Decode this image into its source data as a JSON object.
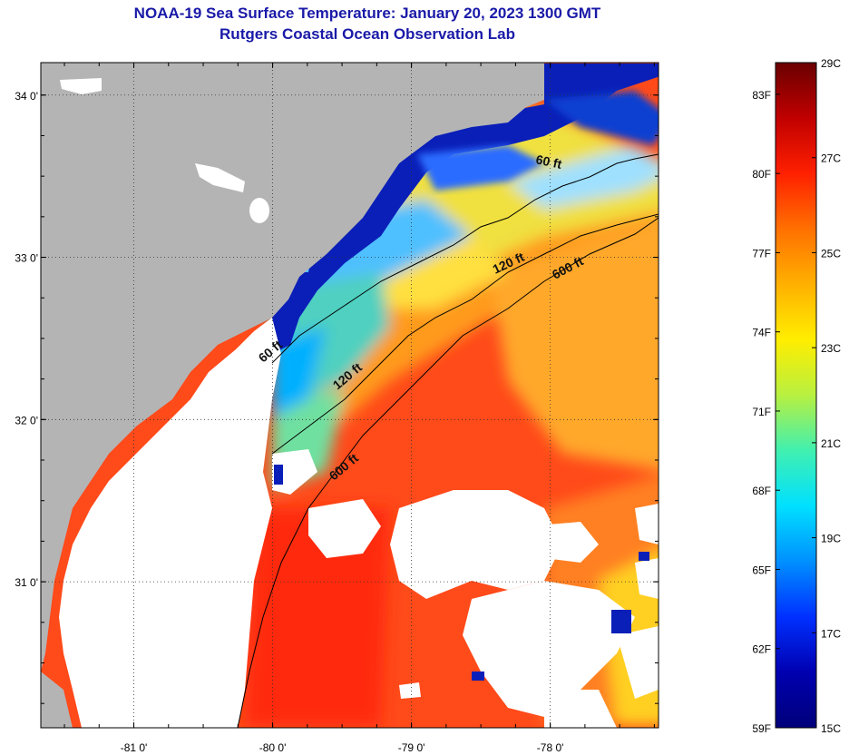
{
  "title": "NOAA-19 Sea Surface Temperature:  January 20, 2023 1300 GMT",
  "subtitle": "Rutgers Coastal Ocean Observation Lab",
  "colors": {
    "land": "#b4b4b4",
    "cloud_mask": "#ffffff",
    "coast_line": "#000000"
  },
  "map": {
    "lon_range": [
      -81.67,
      -77.22
    ],
    "lat_range": [
      30.1,
      34.2
    ],
    "lon_ticks": [
      {
        "value": -81,
        "label": "-81 0'"
      },
      {
        "value": -80,
        "label": "-80 0'"
      },
      {
        "value": -79,
        "label": "-79 0'"
      },
      {
        "value": -78,
        "label": "-78 0'"
      }
    ],
    "lat_ticks": [
      {
        "value": 34,
        "label": "34 0'"
      },
      {
        "value": 33,
        "label": "33 0'"
      },
      {
        "value": 32,
        "label": "32 0'"
      },
      {
        "value": 31,
        "label": "31 0'"
      }
    ],
    "depth_contours": [
      {
        "label": "60 ft"
      },
      {
        "label": "120 ft"
      },
      {
        "label": "600 ft"
      }
    ]
  },
  "colorbar": {
    "range_c": [
      15,
      29
    ],
    "celsius_labels": [
      "29C",
      "27C",
      "25C",
      "23C",
      "21C",
      "19C",
      "17C",
      "15C"
    ],
    "fahrenheit_labels": [
      "83F",
      "80F",
      "77F",
      "74F",
      "71F",
      "68F",
      "65F",
      "62F",
      "59F"
    ],
    "gradient": [
      "#6a0000",
      "#c00000",
      "#ff2000",
      "#ff7000",
      "#ffb000",
      "#ffee00",
      "#b8f040",
      "#40f0b0",
      "#00e0ff",
      "#0090ff",
      "#0030ff",
      "#0000b0",
      "#00007a"
    ]
  }
}
